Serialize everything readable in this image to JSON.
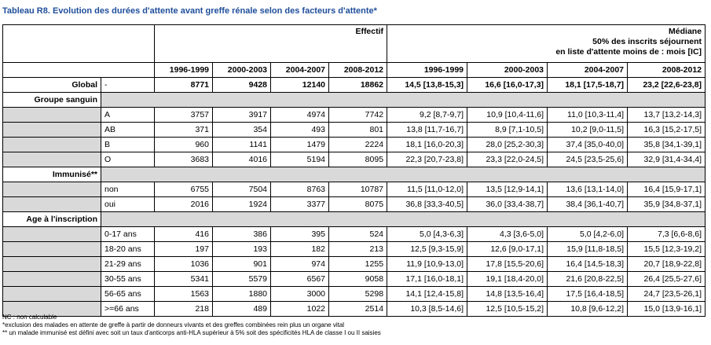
{
  "title": "Tableau R8. Evolution des durées d'attente avant greffe rénale selon des facteurs d'attente*",
  "header": {
    "effectif": "Effectif",
    "mediane_lines": [
      "Médiane",
      "50% des inscrits séjournent",
      "en liste d'attente moins de : mois [IC]"
    ],
    "periods": [
      "1996-1999",
      "2000-2003",
      "2004-2007",
      "2008-2012"
    ]
  },
  "global": {
    "label": "Global",
    "sub": "-",
    "eff": [
      "8771",
      "9428",
      "12140",
      "18862"
    ],
    "med": [
      "14,5 [13,8-15,3]",
      "16,6 [16,0-17,3]",
      "18,1 [17,5-18,7]",
      "23,2 [22,6-23,8]"
    ]
  },
  "groups": [
    {
      "label": "Groupe sanguin",
      "rows": [
        {
          "label": "A",
          "eff": [
            "3757",
            "3917",
            "4974",
            "7742"
          ],
          "med": [
            "9,2 [8,7-9,7]",
            "10,9 [10,4-11,6]",
            "11,0 [10,3-11,4]",
            "13,7 [13,2-14,3]"
          ]
        },
        {
          "label": "AB",
          "eff": [
            "371",
            "354",
            "493",
            "801"
          ],
          "med": [
            "13,8 [11,7-16,7]",
            "8,9 [7,1-10,5]",
            "10,2 [9,0-11,5]",
            "16,3 [15,2-17,5]"
          ]
        },
        {
          "label": "B",
          "eff": [
            "960",
            "1141",
            "1479",
            "2224"
          ],
          "med": [
            "18,1 [16,0-20,3]",
            "28,0 [25,2-30,3]",
            "37,4 [35,0-40,0]",
            "35,8 [34,1-39,1]"
          ]
        },
        {
          "label": "O",
          "eff": [
            "3683",
            "4016",
            "5194",
            "8095"
          ],
          "med": [
            "22,3 [20,7-23,8]",
            "23,3 [22,0-24,5]",
            "24,5 [23,5-25,6]",
            "32,9 [31,4-34,4]"
          ]
        }
      ]
    },
    {
      "label": "Immunisé**",
      "rows": [
        {
          "label": "non",
          "eff": [
            "6755",
            "7504",
            "8763",
            "10787"
          ],
          "med": [
            "11,5 [11,0-12,0]",
            "13,5 [12,9-14,1]",
            "13,6 [13,1-14,0]",
            "16,4 [15,9-17,1]"
          ]
        },
        {
          "label": "oui",
          "eff": [
            "2016",
            "1924",
            "3377",
            "8075"
          ],
          "med": [
            "36,8 [33,3-40,5]",
            "36,0 [33,4-38,7]",
            "38,4 [36,1-40,7]",
            "35,9 [34,8-37,1]"
          ]
        }
      ]
    },
    {
      "label": "Age à l'inscription",
      "rows": [
        {
          "label": "0-17 ans",
          "eff": [
            "416",
            "386",
            "395",
            "524"
          ],
          "med": [
            "5,0 [4,3-6,3]",
            "4,3 [3,6-5,0]",
            "5,0 [4,2-6,0]",
            "7,3 [6,6-8,6]"
          ]
        },
        {
          "label": "18-20 ans",
          "eff": [
            "197",
            "193",
            "182",
            "213"
          ],
          "med": [
            "12,5 [9,3-15,9]",
            "12,6 [9,0-17,1]",
            "15,9 [11,8-18,5]",
            "15,5 [12,3-19,2]"
          ]
        },
        {
          "label": "21-29 ans",
          "eff": [
            "1036",
            "901",
            "974",
            "1255"
          ],
          "med": [
            "11,9 [10,9-13,0]",
            "17,8 [15,5-20,6]",
            "16,4 [14,5-18,3]",
            "20,7 [18,9-22,8]"
          ]
        },
        {
          "label": "30-55 ans",
          "eff": [
            "5341",
            "5579",
            "6567",
            "9058"
          ],
          "med": [
            "17,1 [16,0-18,1]",
            "19,1 [18,4-20,0]",
            "21,6 [20,8-22,5]",
            "26,4 [25,5-27,6]"
          ]
        },
        {
          "label": "56-65 ans",
          "eff": [
            "1563",
            "1880",
            "3000",
            "5298"
          ],
          "med": [
            "14,1 [12,4-15,8]",
            "14,8 [13,5-16,4]",
            "17,5 [16,4-18,5]",
            "24,7 [23,5-26,1]"
          ]
        },
        {
          "label": ">=66 ans",
          "eff": [
            "218",
            "489",
            "1022",
            "2514"
          ],
          "med": [
            "10,3 [8,5-14,6]",
            "12,5 [10,5-15,2]",
            "10,8 [9,6-12,2]",
            "15,0 [13,9-16,1]"
          ]
        }
      ]
    }
  ],
  "notes": [
    "NC : non calculable",
    "*exclusion des malades en attente de greffe à partir de donneurs vivants et des greffes combinées rein plus un organe vital",
    "** un malade immunisé est défini avec soit un taux d'anticorps anti-HLA supérieur à 5% soit des spécificités HLA de classe I ou II saisies"
  ],
  "colors": {
    "title": "#1f4e9a",
    "group_row_bg": "#d9d9d9",
    "border": "#000000"
  }
}
